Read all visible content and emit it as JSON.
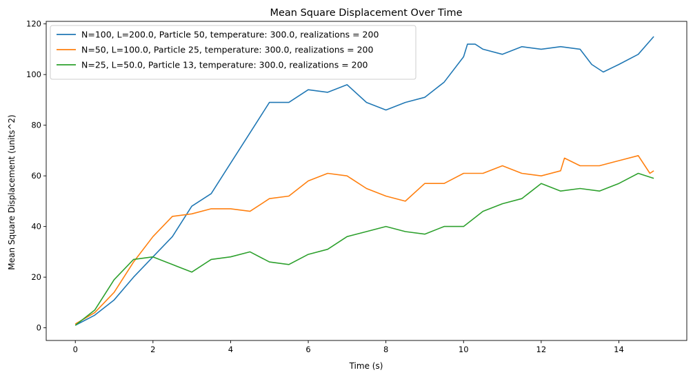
{
  "chart_data": {
    "type": "line",
    "title": "Mean Square Displacement Over Time",
    "xlabel": "Time (s)",
    "ylabel": "Mean Square Displacement (units^2)",
    "xlim": [
      -0.75,
      15.75
    ],
    "ylim": [
      -5,
      121
    ],
    "xticks": [
      0,
      2,
      4,
      6,
      8,
      10,
      12,
      14
    ],
    "yticks": [
      0,
      20,
      40,
      60,
      80,
      100,
      120
    ],
    "grid": false,
    "legend_position": "top-left",
    "series": [
      {
        "name": "N=100, L=200.0, Particle 50, temperature: 300.0, realizations = 200",
        "color": "#1f77b4",
        "points": [
          [
            0,
            1
          ],
          [
            0.5,
            5
          ],
          [
            1,
            11
          ],
          [
            1.5,
            20
          ],
          [
            2,
            28
          ],
          [
            2.5,
            36
          ],
          [
            3,
            48
          ],
          [
            3.5,
            53
          ],
          [
            4,
            65
          ],
          [
            4.5,
            77
          ],
          [
            5,
            89
          ],
          [
            5.5,
            89
          ],
          [
            6,
            94
          ],
          [
            6.5,
            93
          ],
          [
            7,
            96
          ],
          [
            7.5,
            89
          ],
          [
            8,
            86
          ],
          [
            8.5,
            89
          ],
          [
            9,
            91
          ],
          [
            9.5,
            97
          ],
          [
            10,
            107
          ],
          [
            10.1,
            112
          ],
          [
            10.3,
            112
          ],
          [
            10.5,
            110
          ],
          [
            11,
            108
          ],
          [
            11.5,
            111
          ],
          [
            12,
            110
          ],
          [
            12.5,
            111
          ],
          [
            13,
            110
          ],
          [
            13.3,
            104
          ],
          [
            13.6,
            101
          ],
          [
            14,
            104
          ],
          [
            14.5,
            108
          ],
          [
            14.9,
            115
          ]
        ]
      },
      {
        "name": "N=50, L=100.0, Particle 25, temperature: 300.0, realizations = 200",
        "color": "#ff7f0e",
        "points": [
          [
            0,
            1.5
          ],
          [
            0.5,
            6
          ],
          [
            1,
            14
          ],
          [
            1.5,
            26
          ],
          [
            2,
            36
          ],
          [
            2.5,
            44
          ],
          [
            3,
            45
          ],
          [
            3.5,
            47
          ],
          [
            4,
            47
          ],
          [
            4.5,
            46
          ],
          [
            5,
            51
          ],
          [
            5.5,
            52
          ],
          [
            6,
            58
          ],
          [
            6.5,
            61
          ],
          [
            7,
            60
          ],
          [
            7.5,
            55
          ],
          [
            8,
            52
          ],
          [
            8.5,
            50
          ],
          [
            9,
            57
          ],
          [
            9.5,
            57
          ],
          [
            10,
            61
          ],
          [
            10.5,
            61
          ],
          [
            11,
            64
          ],
          [
            11.5,
            61
          ],
          [
            12,
            60
          ],
          [
            12.5,
            62
          ],
          [
            12.6,
            67
          ],
          [
            13,
            64
          ],
          [
            13.5,
            64
          ],
          [
            14,
            66
          ],
          [
            14.5,
            68
          ],
          [
            14.8,
            61
          ],
          [
            14.9,
            62
          ]
        ]
      },
      {
        "name": "N=25, L=50.0, Particle 13, temperature: 300.0, realizations = 200",
        "color": "#2ca02c",
        "points": [
          [
            0,
            1
          ],
          [
            0.5,
            7
          ],
          [
            1,
            19
          ],
          [
            1.5,
            27
          ],
          [
            2,
            28
          ],
          [
            2.5,
            25
          ],
          [
            3,
            22
          ],
          [
            3.5,
            27
          ],
          [
            4,
            28
          ],
          [
            4.5,
            30
          ],
          [
            5,
            26
          ],
          [
            5.5,
            25
          ],
          [
            6,
            29
          ],
          [
            6.5,
            31
          ],
          [
            7,
            36
          ],
          [
            7.5,
            38
          ],
          [
            8,
            40
          ],
          [
            8.5,
            38
          ],
          [
            9,
            37
          ],
          [
            9.5,
            40
          ],
          [
            10,
            40
          ],
          [
            10.5,
            46
          ],
          [
            11,
            49
          ],
          [
            11.5,
            51
          ],
          [
            12,
            57
          ],
          [
            12.5,
            54
          ],
          [
            13,
            55
          ],
          [
            13.5,
            54
          ],
          [
            14,
            57
          ],
          [
            14.5,
            61
          ],
          [
            14.9,
            59
          ]
        ]
      }
    ]
  }
}
